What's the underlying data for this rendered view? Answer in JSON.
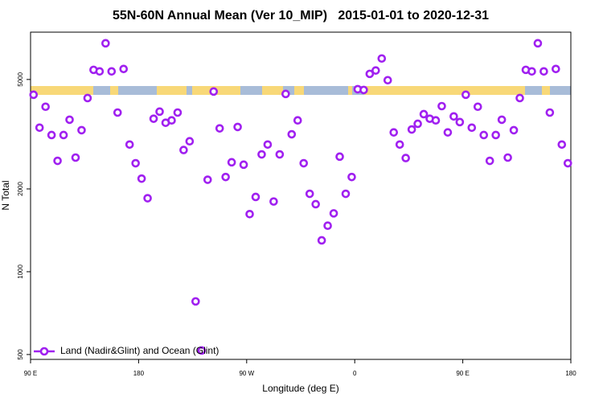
{
  "chart_data": {
    "type": "scatter",
    "title": "55N-60N Annual Mean (Ver 10_MIP)   2015-01-01 to 2020-12-31",
    "x_label": "Longitude (deg E)",
    "y_label": "N Total",
    "log_y": true,
    "legend": "bottom-left",
    "xlim": [
      90,
      540
    ],
    "ylim": [
      480,
      7430
    ],
    "xticks": [
      {
        "value": 90,
        "label": "90 E"
      },
      180,
      {
        "value": 270,
        "label": "90 W"
      },
      {
        "value": 360,
        "label": "0"
      },
      {
        "value": 450,
        "label": "90 E"
      },
      {
        "value": 540,
        "label": "180"
      }
    ],
    "yticks": [
      500,
      1000,
      2000,
      5000
    ],
    "series": [
      {
        "name": "Land (Nadir&Glint) and Ocean (Glint)",
        "color": "#a020f0",
        "x": [
          92.5,
          97.5,
          102.5,
          107.5,
          112.5,
          117.5,
          122.5,
          127.5,
          132.5,
          137.5,
          142.5,
          147.5,
          152.5,
          157.5,
          162.5,
          167.5,
          172.5,
          177.5,
          182.5,
          187.5,
          192.5,
          197.5,
          202.5,
          207.5,
          212.5,
          217.5,
          222.5,
          227.5,
          232.5,
          237.5,
          242.5,
          247.5,
          252.5,
          257.5,
          262.5,
          267.5,
          272.5,
          277.5,
          282.5,
          287.5,
          292.5,
          297.5,
          302.5,
          307.5,
          312.5,
          317.5,
          322.5,
          327.5,
          332.5,
          337.5,
          342.5,
          347.5,
          352.5,
          357.5,
          362.5,
          367.5,
          372.5,
          377.5,
          382.5,
          387.5,
          392.5,
          397.5,
          402.5,
          407.5,
          412.5,
          417.5,
          422.5,
          427.5,
          432.5,
          437.5,
          442.5,
          447.5,
          452.5,
          457.5,
          462.5,
          467.5,
          472.5,
          477.5,
          482.5,
          487.5,
          492.5,
          497.5,
          502.5,
          507.5,
          512.5,
          517.5,
          522.5,
          527.5,
          532.5,
          537.5
        ],
        "values": [
          4400,
          3340,
          3980,
          3140,
          2530,
          3140,
          3570,
          2600,
          3270,
          4280,
          5420,
          5350,
          6770,
          5350,
          3790,
          5460,
          2900,
          2480,
          2180,
          1850,
          3600,
          3820,
          3480,
          3550,
          3790,
          2770,
          2980,
          780,
          517,
          2160,
          4520,
          3320,
          2210,
          2500,
          3360,
          2450,
          1620,
          1870,
          2670,
          2900,
          1800,
          2670,
          4430,
          3160,
          3550,
          2480,
          1920,
          1760,
          1300,
          1470,
          1630,
          2620,
          1920,
          2210,
          4610,
          4580,
          5240,
          5390,
          5960,
          4970,
          3210,
          2900,
          2590,
          3290,
          3450,
          3740,
          3600,
          3550,
          4000,
          3210,
          3670,
          3500,
          4400,
          3340,
          3980,
          3140,
          2530,
          3140,
          3570,
          2600,
          3270,
          4280,
          5420,
          5350,
          6770,
          5350,
          3790,
          5460,
          2900,
          2480
        ]
      }
    ]
  }
}
